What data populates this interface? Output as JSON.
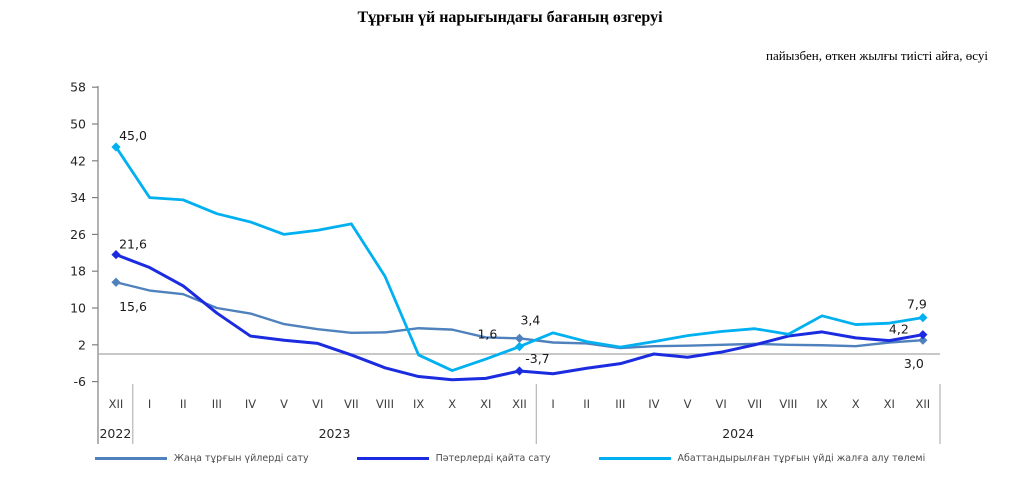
{
  "chart_data": {
    "type": "line",
    "title": "Тұрғын үй нарығындағы бағаның өзгеруі",
    "subtitle": "пайызбен, өткен жылғы тиісті айға, өсуі",
    "grid": false,
    "zero_line": true,
    "legend_position": "bottom",
    "y_ticks": [
      58,
      50,
      42,
      34,
      26,
      18,
      10,
      2,
      -6
    ],
    "ylim": [
      -8,
      60
    ],
    "categories": [
      "XII",
      "I",
      "II",
      "III",
      "IV",
      "V",
      "VI",
      "VII",
      "VIII",
      "IX",
      "X",
      "XI",
      "XII",
      "I",
      "II",
      "III",
      "IV",
      "V",
      "VI",
      "VII",
      "VIII",
      "IX",
      "X",
      "XI",
      "XII"
    ],
    "year_groups": [
      {
        "label": "2022",
        "months": 1
      },
      {
        "label": "2023",
        "months": 12
      },
      {
        "label": "2024",
        "months": 12
      }
    ],
    "marker_indices": [
      0,
      12,
      24
    ],
    "series": [
      {
        "id": "new-housing-sales",
        "name": "Жаңа тұрғын үйлерді сату",
        "color": "#4F81BD",
        "width": 2.4,
        "values": [
          15.6,
          13.8,
          13.0,
          10.0,
          8.8,
          6.5,
          5.4,
          4.6,
          4.7,
          5.6,
          5.3,
          3.6,
          3.4,
          2.5,
          2.3,
          1.3,
          1.7,
          1.8,
          2.0,
          2.2,
          2.0,
          1.9,
          1.7,
          2.5,
          3.0
        ],
        "labels": [
          {
            "index": 0,
            "text": "15,6",
            "dx": 17,
            "dy": 25
          },
          {
            "index": 12,
            "text": "3,4",
            "dx": 11,
            "dy": -18
          },
          {
            "index": 24,
            "text": "3,0",
            "dx": -9,
            "dy": 24
          }
        ]
      },
      {
        "id": "apartment-resale",
        "name": "Пәтерлерді қайта сату",
        "color": "#1B2BDF",
        "width": 3,
        "values": [
          21.6,
          18.8,
          14.8,
          8.9,
          3.9,
          3.0,
          2.3,
          -0.2,
          -3.0,
          -4.9,
          -5.6,
          -5.3,
          -3.7,
          -4.3,
          -3.1,
          -2.1,
          0.0,
          -0.7,
          0.4,
          2.0,
          3.9,
          4.8,
          3.5,
          2.9,
          4.2
        ],
        "labels": [
          {
            "index": 0,
            "text": "21,6",
            "dx": 17,
            "dy": -10
          },
          {
            "index": 12,
            "text": "-3,7",
            "dx": 18,
            "dy": -12
          },
          {
            "index": 24,
            "text": "4,2",
            "dx": -24,
            "dy": -5
          }
        ]
      },
      {
        "id": "rent-payment",
        "name": "Абаттандырылған тұрғын үйді жалға алу төлемі",
        "color": "#00B0F0",
        "width": 2.8,
        "values": [
          45.0,
          34.0,
          33.5,
          30.5,
          28.7,
          26.0,
          26.9,
          28.3,
          16.9,
          -0.2,
          -3.6,
          -1.1,
          1.6,
          4.6,
          2.7,
          1.5,
          2.7,
          4.0,
          4.9,
          5.5,
          4.3,
          8.3,
          6.4,
          6.7,
          7.9
        ],
        "labels": [
          {
            "index": 0,
            "text": "45,0",
            "dx": 17,
            "dy": -11
          },
          {
            "index": 12,
            "text": "1,6",
            "dx": -32,
            "dy": -12
          },
          {
            "index": 24,
            "text": "7,9",
            "dx": -6,
            "dy": -13
          }
        ]
      }
    ]
  }
}
